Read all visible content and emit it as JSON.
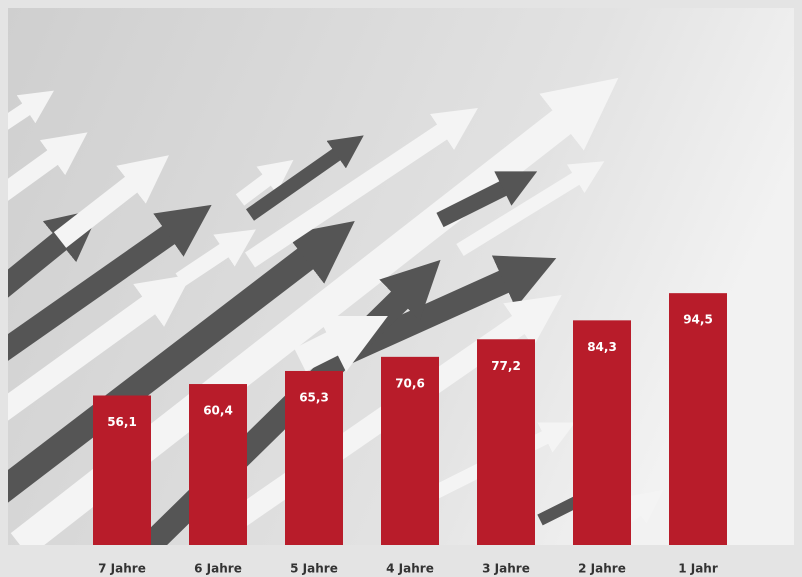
{
  "chart_data": {
    "type": "bar",
    "categories": [
      "7 Jahre",
      "6 Jahre",
      "5 Jahre",
      "4 Jahre",
      "3 Jahre",
      "2 Jahre",
      "1 Jahr"
    ],
    "values": [
      56.1,
      60.4,
      65.3,
      70.6,
      77.2,
      84.3,
      94.5
    ],
    "value_labels": [
      "56,1",
      "60,4",
      "65,3",
      "70,6",
      "77,2",
      "84,3",
      "94,5"
    ],
    "color": "#b81c2a"
  }
}
